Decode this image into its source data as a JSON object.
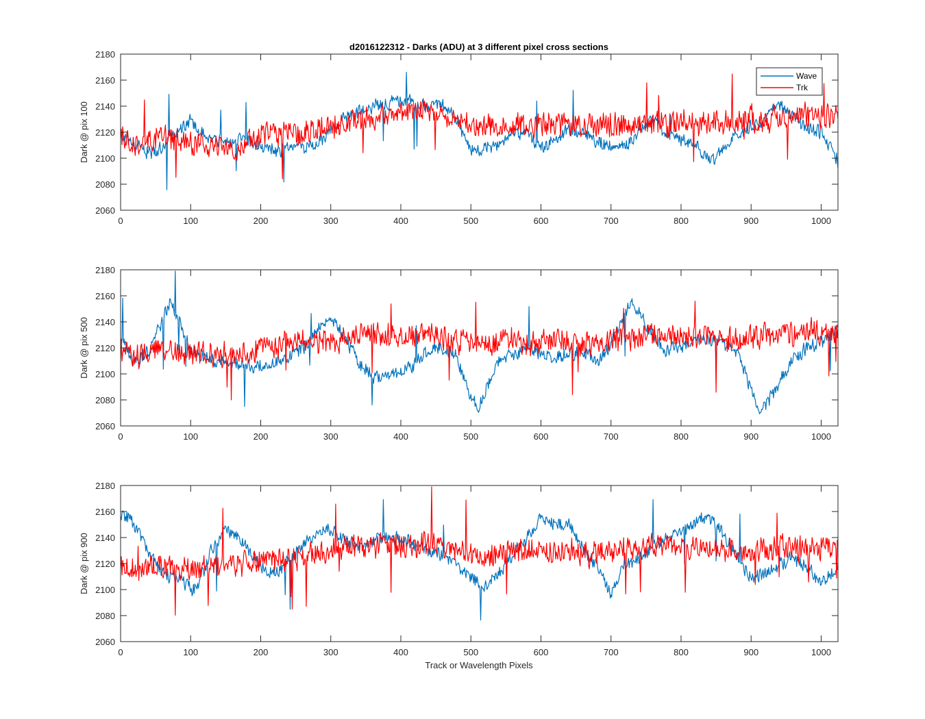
{
  "chart_data": {
    "type": "line",
    "title": "d2016122312 - Darks (ADU) at 3 different pixel cross sections",
    "xlabel": "Track or Wavelength Pixels",
    "xlim": [
      0,
      1024
    ],
    "x_ticks": [
      0,
      100,
      200,
      300,
      400,
      500,
      600,
      700,
      800,
      900,
      1000
    ],
    "legend": {
      "entries": [
        "Wave",
        "Trk"
      ],
      "placement": "top-right (first panel)"
    },
    "colors": {
      "Wave": "#0072BD",
      "Trk": "#FF0000"
    },
    "panels": [
      {
        "ylabel": "Dark @ pix 100",
        "ylim": [
          2060,
          2180
        ],
        "y_ticks": [
          2060,
          2080,
          2100,
          2120,
          2140,
          2160,
          2180
        ],
        "series": [
          {
            "name": "Wave",
            "x": [
              0,
              20,
              40,
              60,
              80,
              100,
              120,
              150,
              180,
              200,
              220,
              250,
              280,
              300,
              320,
              340,
              360,
              380,
              400,
              420,
              440,
              460,
              480,
              500,
              520,
              540,
              560,
              580,
              600,
              620,
              640,
              660,
              680,
              700,
              720,
              740,
              760,
              780,
              800,
              820,
              840,
              860,
              880,
              900,
              920,
              940,
              960,
              980,
              1000,
              1024
            ],
            "y": [
              2120,
              2110,
              2104,
              2108,
              2120,
              2130,
              2118,
              2112,
              2115,
              2108,
              2106,
              2108,
              2110,
              2122,
              2130,
              2136,
              2140,
              2142,
              2144,
              2143,
              2140,
              2142,
              2128,
              2106,
              2108,
              2110,
              2122,
              2118,
              2108,
              2114,
              2122,
              2120,
              2112,
              2110,
              2108,
              2122,
              2132,
              2118,
              2114,
              2112,
              2098,
              2106,
              2120,
              2124,
              2130,
              2140,
              2132,
              2124,
              2120,
              2098
            ]
          },
          {
            "name": "Trk",
            "x": [
              0,
              20,
              40,
              60,
              80,
              100,
              120,
              150,
              180,
              200,
              220,
              250,
              280,
              300,
              320,
              340,
              360,
              380,
              400,
              420,
              440,
              460,
              480,
              500,
              520,
              540,
              560,
              580,
              600,
              620,
              640,
              660,
              680,
              700,
              720,
              740,
              760,
              780,
              800,
              820,
              840,
              860,
              880,
              900,
              920,
              940,
              960,
              980,
              1000,
              1024
            ],
            "y": [
              2115,
              2112,
              2116,
              2118,
              2114,
              2112,
              2110,
              2106,
              2110,
              2118,
              2120,
              2118,
              2122,
              2124,
              2126,
              2130,
              2132,
              2132,
              2136,
              2138,
              2136,
              2134,
              2130,
              2126,
              2124,
              2126,
              2126,
              2124,
              2126,
              2128,
              2126,
              2124,
              2124,
              2126,
              2124,
              2124,
              2126,
              2126,
              2128,
              2128,
              2126,
              2128,
              2128,
              2130,
              2130,
              2130,
              2132,
              2132,
              2134,
              2134
            ]
          }
        ]
      },
      {
        "ylabel": "Dark @ pix 500",
        "ylim": [
          2060,
          2180
        ],
        "y_ticks": [
          2060,
          2080,
          2100,
          2120,
          2140,
          2160,
          2180
        ],
        "series": [
          {
            "name": "Wave",
            "x": [
              0,
              20,
              40,
              50,
              60,
              70,
              80,
              100,
              130,
              160,
              200,
              230,
              260,
              290,
              310,
              340,
              360,
              380,
              400,
              420,
              440,
              460,
              480,
              490,
              500,
              510,
              520,
              540,
              560,
              580,
              600,
              620,
              640,
              660,
              680,
              700,
              710,
              720,
              730,
              740,
              760,
              780,
              800,
              820,
              840,
              860,
              880,
              890,
              900,
              910,
              920,
              940,
              960,
              980,
              1000,
              1024
            ],
            "y": [
              2126,
              2110,
              2118,
              2130,
              2142,
              2154,
              2146,
              2118,
              2112,
              2108,
              2106,
              2110,
              2120,
              2140,
              2138,
              2108,
              2098,
              2098,
              2102,
              2108,
              2118,
              2120,
              2114,
              2096,
              2082,
              2074,
              2086,
              2110,
              2114,
              2120,
              2116,
              2112,
              2116,
              2118,
              2110,
              2122,
              2136,
              2148,
              2156,
              2148,
              2130,
              2118,
              2122,
              2126,
              2126,
              2124,
              2116,
              2104,
              2088,
              2072,
              2076,
              2092,
              2112,
              2120,
              2124,
              2136
            ]
          },
          {
            "name": "Trk",
            "x": [
              0,
              20,
              40,
              60,
              80,
              100,
              120,
              150,
              180,
              200,
              220,
              250,
              280,
              300,
              320,
              340,
              360,
              380,
              400,
              420,
              440,
              460,
              480,
              500,
              520,
              540,
              560,
              580,
              600,
              620,
              640,
              660,
              680,
              700,
              720,
              740,
              760,
              780,
              800,
              820,
              840,
              860,
              880,
              900,
              920,
              940,
              960,
              980,
              1000,
              1024
            ],
            "y": [
              2118,
              2114,
              2116,
              2120,
              2118,
              2116,
              2114,
              2114,
              2116,
              2120,
              2122,
              2124,
              2124,
              2126,
              2128,
              2130,
              2130,
              2128,
              2130,
              2132,
              2130,
              2128,
              2126,
              2124,
              2124,
              2126,
              2126,
              2124,
              2126,
              2126,
              2126,
              2124,
              2124,
              2126,
              2128,
              2128,
              2128,
              2130,
              2130,
              2128,
              2128,
              2126,
              2126,
              2128,
              2130,
              2130,
              2130,
              2132,
              2132,
              2132
            ]
          }
        ]
      },
      {
        "ylabel": "Dark @ pix 900",
        "ylim": [
          2060,
          2180
        ],
        "y_ticks": [
          2060,
          2080,
          2100,
          2120,
          2140,
          2160,
          2180
        ],
        "series": [
          {
            "name": "Wave",
            "x": [
              0,
              10,
              20,
              40,
              60,
              80,
              100,
              110,
              130,
              150,
              170,
              200,
              220,
              240,
              260,
              280,
              300,
              320,
              340,
              360,
              380,
              400,
              420,
              440,
              460,
              480,
              500,
              520,
              540,
              560,
              580,
              600,
              620,
              640,
              660,
              680,
              700,
              720,
              740,
              760,
              780,
              800,
              820,
              840,
              860,
              880,
              900,
              920,
              940,
              960,
              980,
              1000,
              1024
            ],
            "y": [
              2156,
              2156,
              2148,
              2130,
              2112,
              2110,
              2100,
              2102,
              2130,
              2146,
              2140,
              2118,
              2112,
              2122,
              2134,
              2144,
              2146,
              2138,
              2132,
              2138,
              2140,
              2140,
              2134,
              2130,
              2126,
              2118,
              2110,
              2102,
              2112,
              2126,
              2140,
              2154,
              2150,
              2150,
              2132,
              2118,
              2096,
              2120,
              2124,
              2132,
              2140,
              2144,
              2152,
              2156,
              2142,
              2126,
              2108,
              2112,
              2120,
              2124,
              2118,
              2104,
              2118
            ]
          },
          {
            "name": "Trk",
            "x": [
              0,
              20,
              40,
              60,
              80,
              100,
              120,
              150,
              180,
              200,
              220,
              250,
              280,
              300,
              320,
              340,
              360,
              380,
              400,
              420,
              440,
              460,
              480,
              500,
              520,
              540,
              560,
              580,
              600,
              620,
              640,
              660,
              680,
              700,
              720,
              740,
              760,
              780,
              800,
              820,
              840,
              860,
              880,
              900,
              920,
              940,
              960,
              980,
              1000,
              1024
            ],
            "y": [
              2118,
              2116,
              2118,
              2118,
              2116,
              2116,
              2116,
              2118,
              2120,
              2122,
              2124,
              2126,
              2128,
              2130,
              2132,
              2132,
              2134,
              2134,
              2136,
              2134,
              2134,
              2132,
              2130,
              2128,
              2126,
              2128,
              2130,
              2130,
              2130,
              2130,
              2130,
              2128,
              2128,
              2130,
              2130,
              2130,
              2130,
              2132,
              2132,
              2132,
              2132,
              2130,
              2130,
              2130,
              2130,
              2132,
              2132,
              2132,
              2132,
              2132
            ]
          }
        ]
      }
    ]
  }
}
